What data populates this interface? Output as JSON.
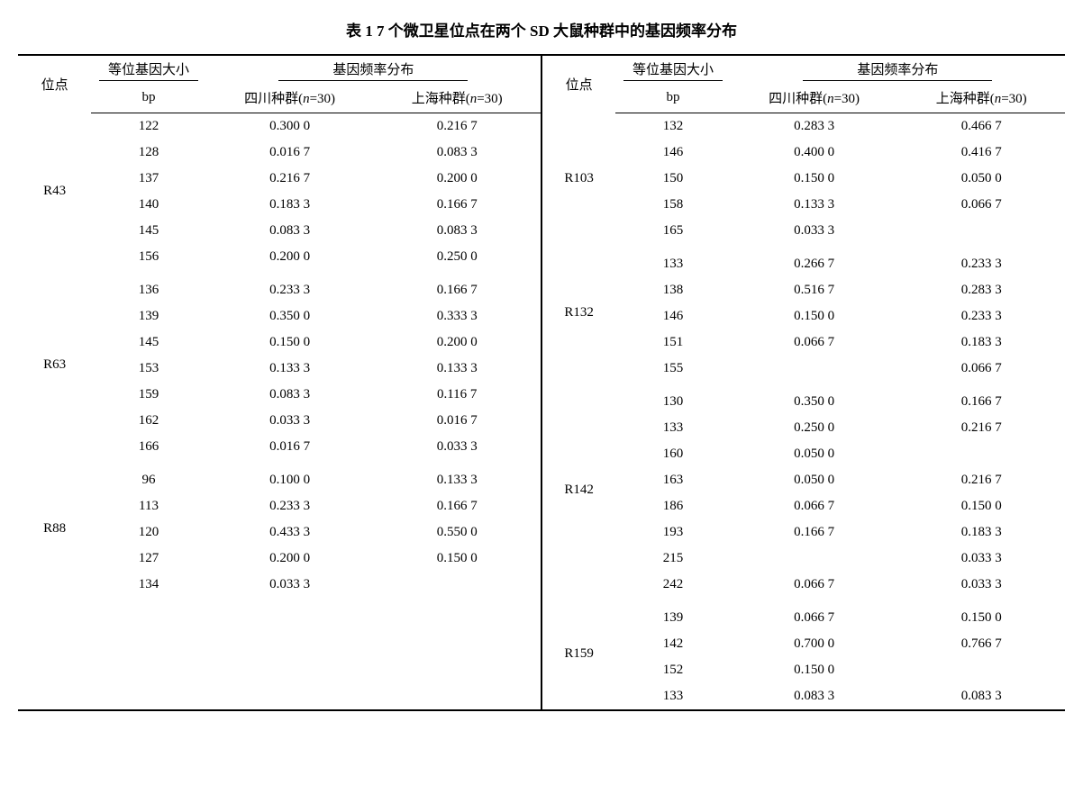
{
  "title": "表 1    7 个微卫星位点在两个 SD 大鼠种群中的基因频率分布",
  "headers": {
    "locus": "位点",
    "allele_size": "等位基因大小",
    "freq_dist": "基因频率分布",
    "bp": "bp",
    "sichuan_pre": "四川种群(",
    "n_label": "n",
    "n30_post": "=30)",
    "shanghai_pre": "上海种群("
  },
  "left": {
    "R43": {
      "label": "R43",
      "rows": [
        {
          "bp": "122",
          "sc": "0.300 0",
          "sh": "0.216 7"
        },
        {
          "bp": "128",
          "sc": "0.016 7",
          "sh": "0.083 3"
        },
        {
          "bp": "137",
          "sc": "0.216 7",
          "sh": "0.200 0"
        },
        {
          "bp": "140",
          "sc": "0.183 3",
          "sh": "0.166 7"
        },
        {
          "bp": "145",
          "sc": "0.083 3",
          "sh": "0.083 3"
        },
        {
          "bp": "156",
          "sc": "0.200 0",
          "sh": "0.250 0"
        }
      ]
    },
    "R63": {
      "label": "R63",
      "rows": [
        {
          "bp": "136",
          "sc": "0.233 3",
          "sh": "0.166 7"
        },
        {
          "bp": "139",
          "sc": "0.350 0",
          "sh": "0.333 3"
        },
        {
          "bp": "145",
          "sc": "0.150 0",
          "sh": "0.200 0"
        },
        {
          "bp": "153",
          "sc": "0.133 3",
          "sh": "0.133 3"
        },
        {
          "bp": "159",
          "sc": "0.083 3",
          "sh": "0.116 7"
        },
        {
          "bp": "162",
          "sc": "0.033 3",
          "sh": "0.016 7"
        },
        {
          "bp": "166",
          "sc": "0.016 7",
          "sh": "0.033 3"
        }
      ]
    },
    "R88": {
      "label": "R88",
      "rows": [
        {
          "bp": "96",
          "sc": "0.100 0",
          "sh": "0.133 3"
        },
        {
          "bp": "113",
          "sc": "0.233 3",
          "sh": "0.166 7"
        },
        {
          "bp": "120",
          "sc": "0.433 3",
          "sh": "0.550 0"
        },
        {
          "bp": "127",
          "sc": "0.200 0",
          "sh": "0.150 0"
        },
        {
          "bp": "134",
          "sc": "0.033 3",
          "sh": ""
        }
      ]
    }
  },
  "right": {
    "R103": {
      "label": "R103",
      "rows": [
        {
          "bp": "132",
          "sc": "0.283 3",
          "sh": "0.466 7"
        },
        {
          "bp": "146",
          "sc": "0.400 0",
          "sh": "0.416 7"
        },
        {
          "bp": "150",
          "sc": "0.150 0",
          "sh": "0.050 0"
        },
        {
          "bp": "158",
          "sc": "0.133 3",
          "sh": "0.066 7"
        },
        {
          "bp": "165",
          "sc": "0.033 3",
          "sh": ""
        }
      ]
    },
    "R132": {
      "label": "R132",
      "rows": [
        {
          "bp": "133",
          "sc": "0.266 7",
          "sh": "0.233 3"
        },
        {
          "bp": "138",
          "sc": "0.516 7",
          "sh": "0.283 3"
        },
        {
          "bp": "146",
          "sc": "0.150 0",
          "sh": "0.233 3"
        },
        {
          "bp": "151",
          "sc": "0.066 7",
          "sh": "0.183 3"
        },
        {
          "bp": "155",
          "sc": "",
          "sh": "0.066 7"
        }
      ]
    },
    "R142": {
      "label": "R142",
      "rows": [
        {
          "bp": "130",
          "sc": "0.350 0",
          "sh": "0.166 7"
        },
        {
          "bp": "133",
          "sc": "0.250 0",
          "sh": "0.216 7"
        },
        {
          "bp": "160",
          "sc": "0.050 0",
          "sh": ""
        },
        {
          "bp": "163",
          "sc": "0.050 0",
          "sh": "0.216 7"
        },
        {
          "bp": "186",
          "sc": "0.066 7",
          "sh": "0.150 0"
        },
        {
          "bp": "193",
          "sc": "0.166 7",
          "sh": "0.183 3"
        },
        {
          "bp": "215",
          "sc": "",
          "sh": "0.033 3"
        },
        {
          "bp": "242",
          "sc": "0.066 7",
          "sh": "0.033 3"
        }
      ]
    },
    "R159": {
      "label": "R159",
      "rows": [
        {
          "bp": "139",
          "sc": "0.066 7",
          "sh": "0.150 0"
        },
        {
          "bp": "142",
          "sc": "0.700 0",
          "sh": "0.766 7"
        },
        {
          "bp": "152",
          "sc": "0.150 0",
          "sh": ""
        },
        {
          "bp": "133",
          "sc": "0.083 3",
          "sh": "0.083 3"
        }
      ]
    }
  }
}
